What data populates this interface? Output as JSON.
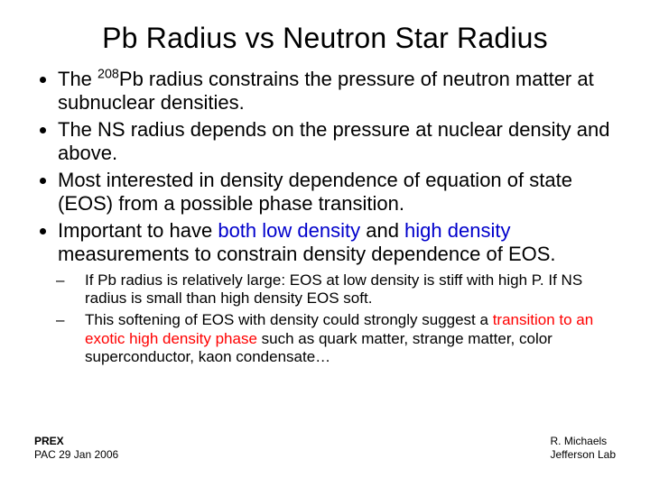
{
  "title": "Pb Radius vs Neutron Star Radius",
  "bullets": {
    "b1_pre": "The ",
    "b1_sup": "208",
    "b1_post": "Pb radius constrains the pressure of neutron matter at subnuclear densities.",
    "b2": "The NS radius depends on the pressure at nuclear density and above.",
    "b3": "Most interested in density dependence of equation of state (EOS) from a possible phase transition.",
    "b4_a": "Important to have ",
    "b4_b": " both ",
    "b4_c": " low density ",
    "b4_d": " and ",
    "b4_e": " high density ",
    "b4_f": "measurements to constrain density dependence of EOS."
  },
  "subs": {
    "s1": "If Pb radius is relatively large: EOS at low density is stiff with high P.  If NS radius is small than high density EOS soft.",
    "s2_a": "This softening of EOS with density could strongly suggest a ",
    "s2_b": "transition to an exotic high density phase",
    "s2_c": " such as quark matter, strange matter, color superconductor, kaon condensate…"
  },
  "footer": {
    "left1": "PREX",
    "left2": "PAC 29   Jan 2006",
    "right1": "R.  Michaels",
    "right2": "Jefferson  Lab"
  }
}
